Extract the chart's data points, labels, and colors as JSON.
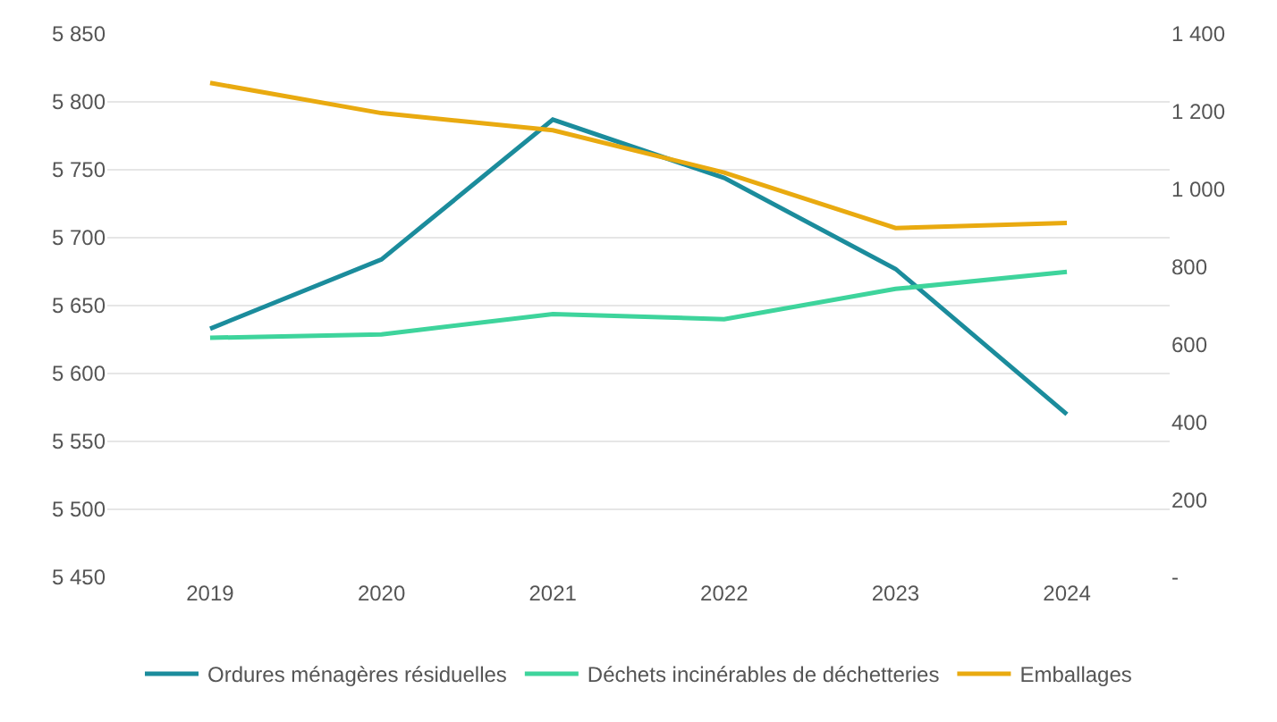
{
  "chart_data": {
    "type": "line",
    "categories": [
      "2019",
      "2020",
      "2021",
      "2022",
      "2023",
      "2024"
    ],
    "series": [
      {
        "name": "Ordures ménagères résiduelles",
        "color": "#1b8c9c",
        "values": [
          5633,
          5684,
          5787,
          5744,
          5677,
          5570
        ]
      },
      {
        "name": "Déchets incinérables de déchetteries",
        "color": "#3ed49c",
        "values": [
          617,
          626,
          678,
          665,
          743,
          787
        ],
        "axis": "y2"
      },
      {
        "name": "Emballages",
        "color": "#e9aa10",
        "values": [
          1274,
          1196,
          1152,
          1043,
          900,
          913
        ],
        "axis": "y2"
      }
    ],
    "ylim": [
      5450,
      5850
    ],
    "yticks": [
      5450,
      5500,
      5550,
      5600,
      5650,
      5700,
      5750,
      5800,
      5850
    ],
    "y2lim": [
      0,
      1400
    ],
    "y2ticks": [
      {
        "value": 0,
        "label": "-"
      },
      200,
      400,
      600,
      800,
      1000,
      1200,
      1400
    ],
    "grid": "y",
    "legend": "bottom",
    "marker": "none",
    "line_style": "solid"
  }
}
